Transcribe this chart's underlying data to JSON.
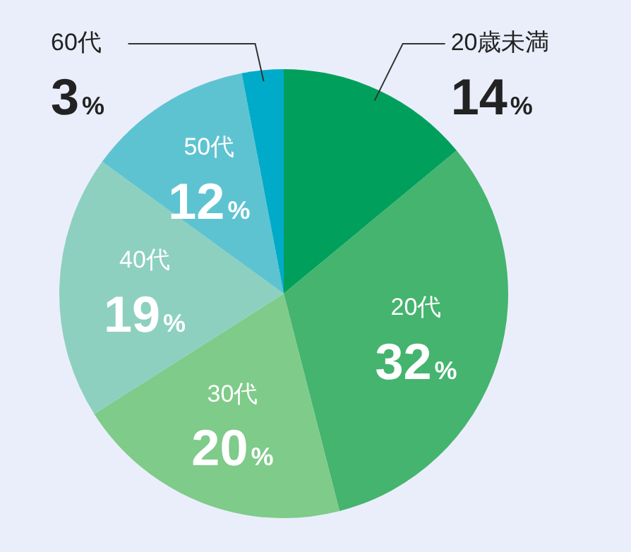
{
  "chart_data": {
    "type": "pie",
    "categories": [
      "20歳未満",
      "20代",
      "30代",
      "40代",
      "50代",
      "60代"
    ],
    "values": [
      14,
      32,
      20,
      19,
      12,
      3
    ],
    "colors": [
      "#00a05c",
      "#44b46e",
      "#7ecb8a",
      "#8dd0bf",
      "#5ec3d1",
      "#00abc9"
    ],
    "value_labels": [
      "14%",
      "32%",
      "20%",
      "19%",
      "12%",
      "3%"
    ],
    "legend": false
  }
}
